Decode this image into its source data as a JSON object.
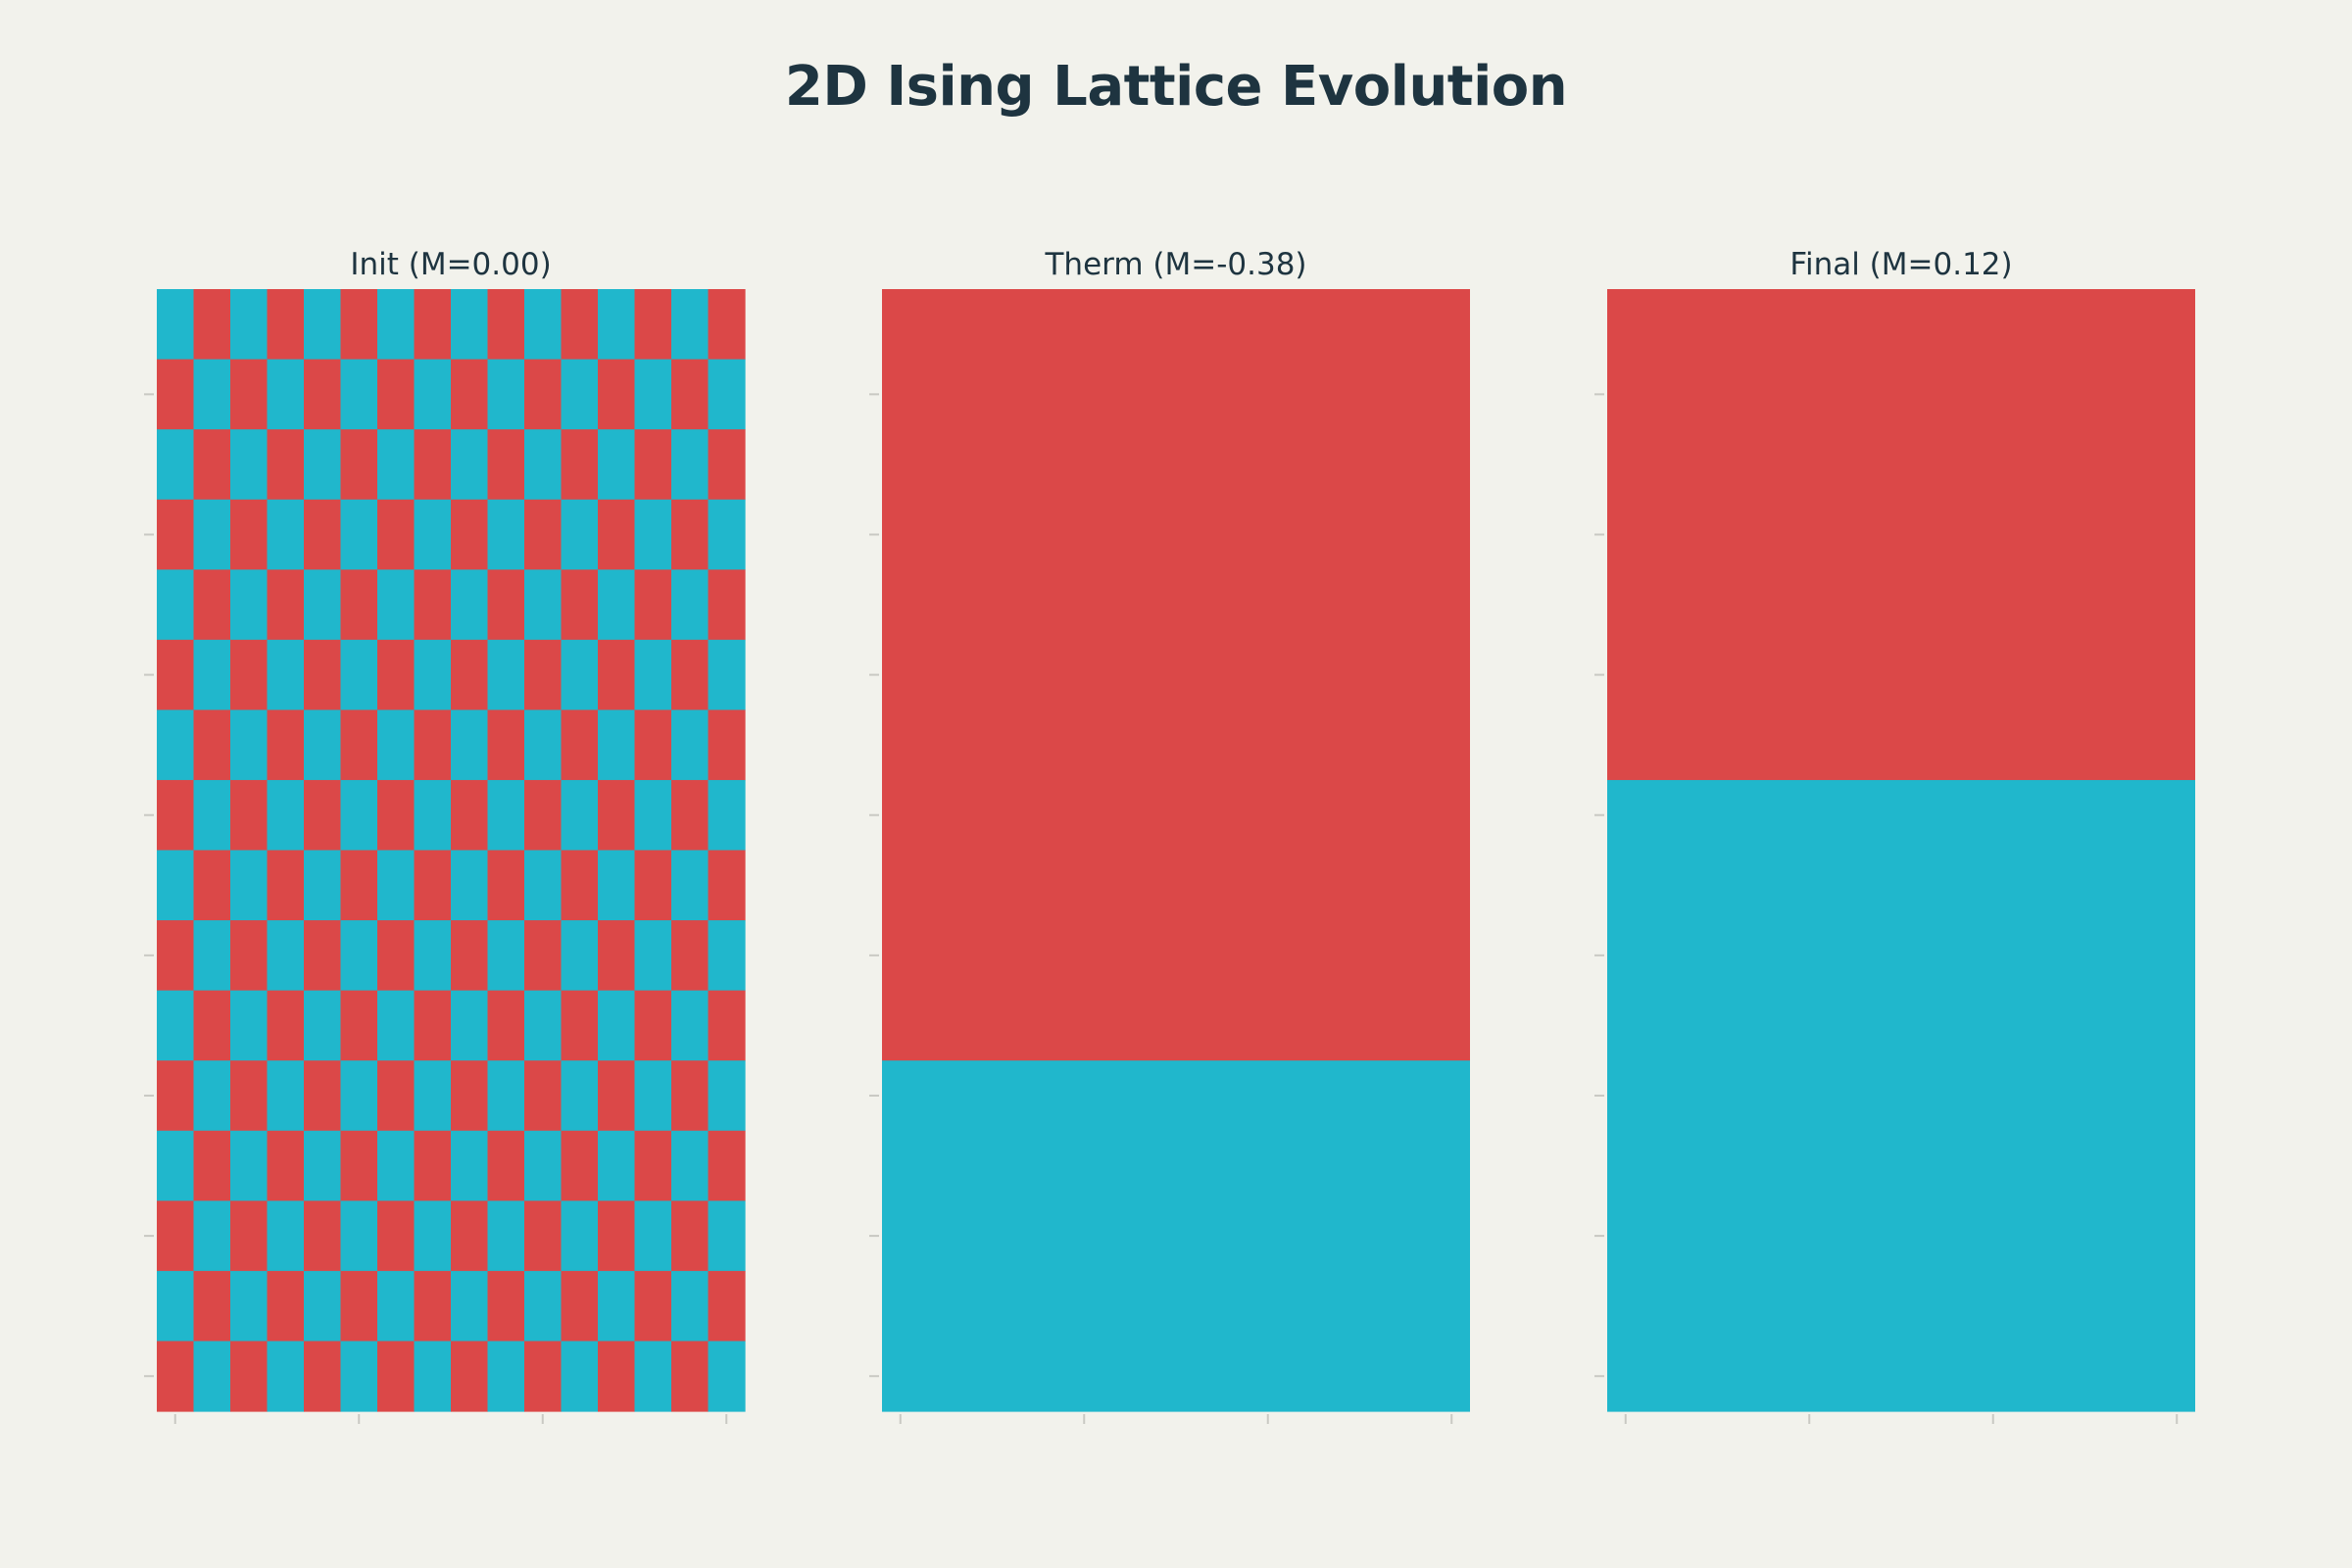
{
  "chart_data": {
    "type": "heatmap",
    "title": "2D Ising Lattice Evolution",
    "colors": {
      "spin_up": "#20b7cc",
      "spin_down": "#db4848",
      "background": "#f2f2ec",
      "text": "#1e3440",
      "tick": "#c9c9c3"
    },
    "panels": [
      {
        "title": "Init (M=0.00)",
        "magnetization": 0.0,
        "cols": 16,
        "rows": 16,
        "pattern": "checkerboard",
        "top_left_spin": 1
      },
      {
        "title": "Therm (M=-0.38)",
        "magnetization": -0.38,
        "cols": 16,
        "rows": 16,
        "pattern": "domains",
        "domains": [
          {
            "row_from": 0,
            "row_to": 11,
            "spin": -1
          },
          {
            "row_from": 11,
            "row_to": 16,
            "spin": 1
          }
        ]
      },
      {
        "title": "Final (M=0.12)",
        "magnetization": 0.12,
        "cols": 16,
        "rows": 16,
        "pattern": "domains",
        "domains": [
          {
            "row_from": 0,
            "row_to": 7,
            "spin": -1
          },
          {
            "row_from": 7,
            "row_to": 16,
            "spin": 1
          }
        ]
      }
    ],
    "x_ticks": [
      0,
      5,
      10,
      15
    ],
    "y_ticks": [
      1,
      3,
      5,
      7,
      9,
      11,
      13,
      15
    ],
    "grid": false,
    "legend": "none"
  }
}
